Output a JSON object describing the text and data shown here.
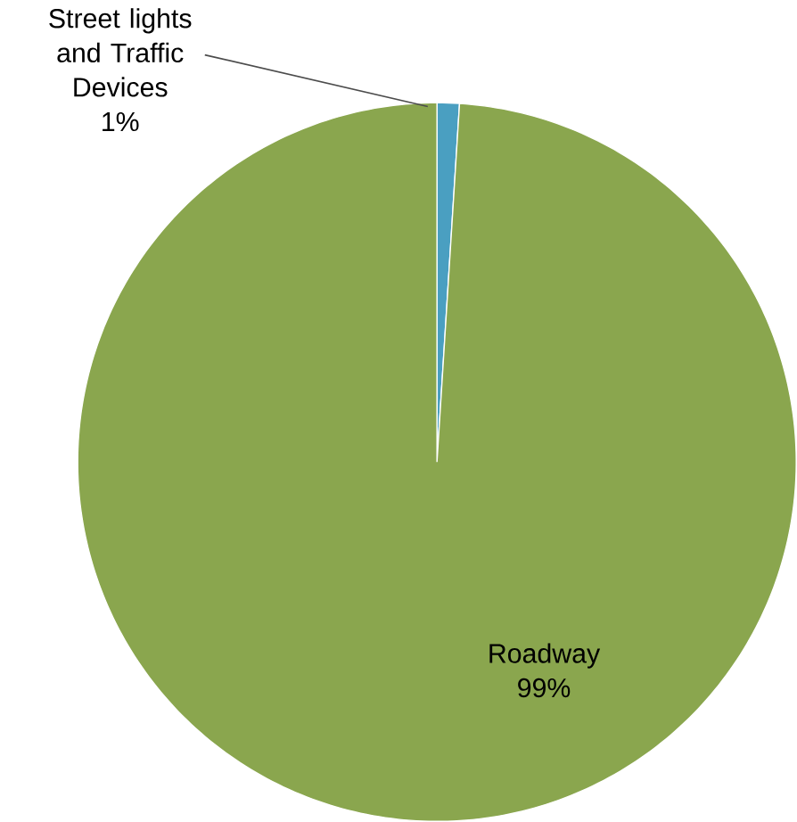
{
  "chart_data": {
    "type": "pie",
    "categories": [
      "Street lights and Traffic Devices",
      "Roadway"
    ],
    "values": [
      1,
      99
    ],
    "colors": [
      "#4a9fc1",
      "#8aa64e"
    ],
    "value_labels": [
      "1%",
      "99%"
    ]
  }
}
